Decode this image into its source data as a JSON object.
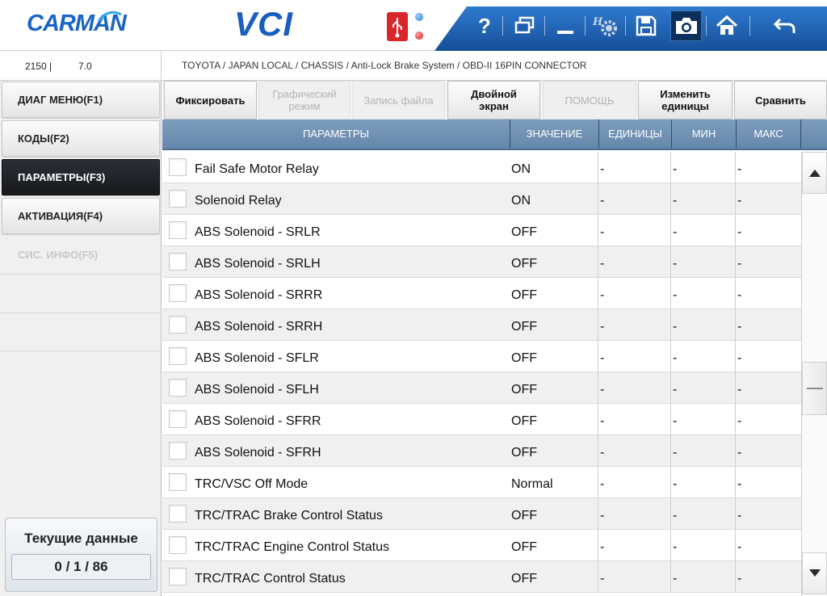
{
  "header": {
    "logo_text": "CARMAN",
    "app_title": "VCI",
    "colors": {
      "brand_blue": "#1a64c4",
      "toolbar_blue": "#1d5fb0"
    },
    "toolbar_icons": [
      "help-icon",
      "window-icon",
      "minimize-icon",
      "settings-icon",
      "save-icon",
      "camera-icon",
      "home-icon",
      "back-icon"
    ]
  },
  "infobar": {
    "version_a": "2150  |",
    "version_b": "7.0",
    "breadcrumb": "TOYOTA / JAPAN LOCAL / CHASSIS / Anti-Lock Brake System / OBD-II 16PIN CONNECTOR"
  },
  "sidebar": {
    "items": [
      {
        "label": "ДИАГ МЕНЮ(F1)",
        "state": "normal"
      },
      {
        "label": "КОДЫ(F2)",
        "state": "normal"
      },
      {
        "label": "ПАРАМЕТРЫ(F3)",
        "state": "active"
      },
      {
        "label": "АКТИВАЦИЯ(F4)",
        "state": "normal"
      },
      {
        "label": "СИС. ИНФО(F5)",
        "state": "disabled"
      }
    ],
    "current_data_label": "Текущие данные",
    "current_data_count": "0 / 1 / 86"
  },
  "tools": {
    "fix": "Фиксировать",
    "graph_1": "Графический",
    "graph_2": "режим",
    "record": "Запись файла",
    "dual_1": "Двойной",
    "dual_2": "экран",
    "help": "ПОМОЩЬ",
    "units_1": "Изменить",
    "units_2": "единицы",
    "compare": "Сравнить"
  },
  "table": {
    "headers": {
      "param": "ПАРАМЕТРЫ",
      "value": "ЗНАЧЕНИЕ",
      "units": "ЕДИНИЦЫ",
      "min": "МИН",
      "max": "МАКС"
    },
    "rows": [
      {
        "name": "Fail Safe Motor Relay",
        "value": "ON",
        "units": "-",
        "min": "-",
        "max": "-"
      },
      {
        "name": "Solenoid Relay",
        "value": "ON",
        "units": "-",
        "min": "-",
        "max": "-"
      },
      {
        "name": "ABS Solenoid - SRLR",
        "value": "OFF",
        "units": "-",
        "min": "-",
        "max": "-"
      },
      {
        "name": "ABS Solenoid - SRLH",
        "value": "OFF",
        "units": "-",
        "min": "-",
        "max": "-"
      },
      {
        "name": "ABS Solenoid - SRRR",
        "value": "OFF",
        "units": "-",
        "min": "-",
        "max": "-"
      },
      {
        "name": "ABS Solenoid - SRRH",
        "value": "OFF",
        "units": "-",
        "min": "-",
        "max": "-"
      },
      {
        "name": "ABS Solenoid - SFLR",
        "value": "OFF",
        "units": "-",
        "min": "-",
        "max": "-"
      },
      {
        "name": "ABS Solenoid - SFLH",
        "value": "OFF",
        "units": "-",
        "min": "-",
        "max": "-"
      },
      {
        "name": "ABS Solenoid - SFRR",
        "value": "OFF",
        "units": "-",
        "min": "-",
        "max": "-"
      },
      {
        "name": "ABS Solenoid - SFRH",
        "value": "OFF",
        "units": "-",
        "min": "-",
        "max": "-"
      },
      {
        "name": "TRC/VSC Off Mode",
        "value": "Normal",
        "units": "-",
        "min": "-",
        "max": "-"
      },
      {
        "name": "TRC/TRAC Brake Control Status",
        "value": "OFF",
        "units": "-",
        "min": "-",
        "max": "-"
      },
      {
        "name": "TRC/TRAC Engine Control Status",
        "value": "OFF",
        "units": "-",
        "min": "-",
        "max": "-"
      },
      {
        "name": "TRC/TRAC Control Status",
        "value": "OFF",
        "units": "-",
        "min": "-",
        "max": "-"
      }
    ]
  },
  "scrollbar": {
    "icons": [
      "scroll-up-icon",
      "scroll-down-icon"
    ]
  }
}
